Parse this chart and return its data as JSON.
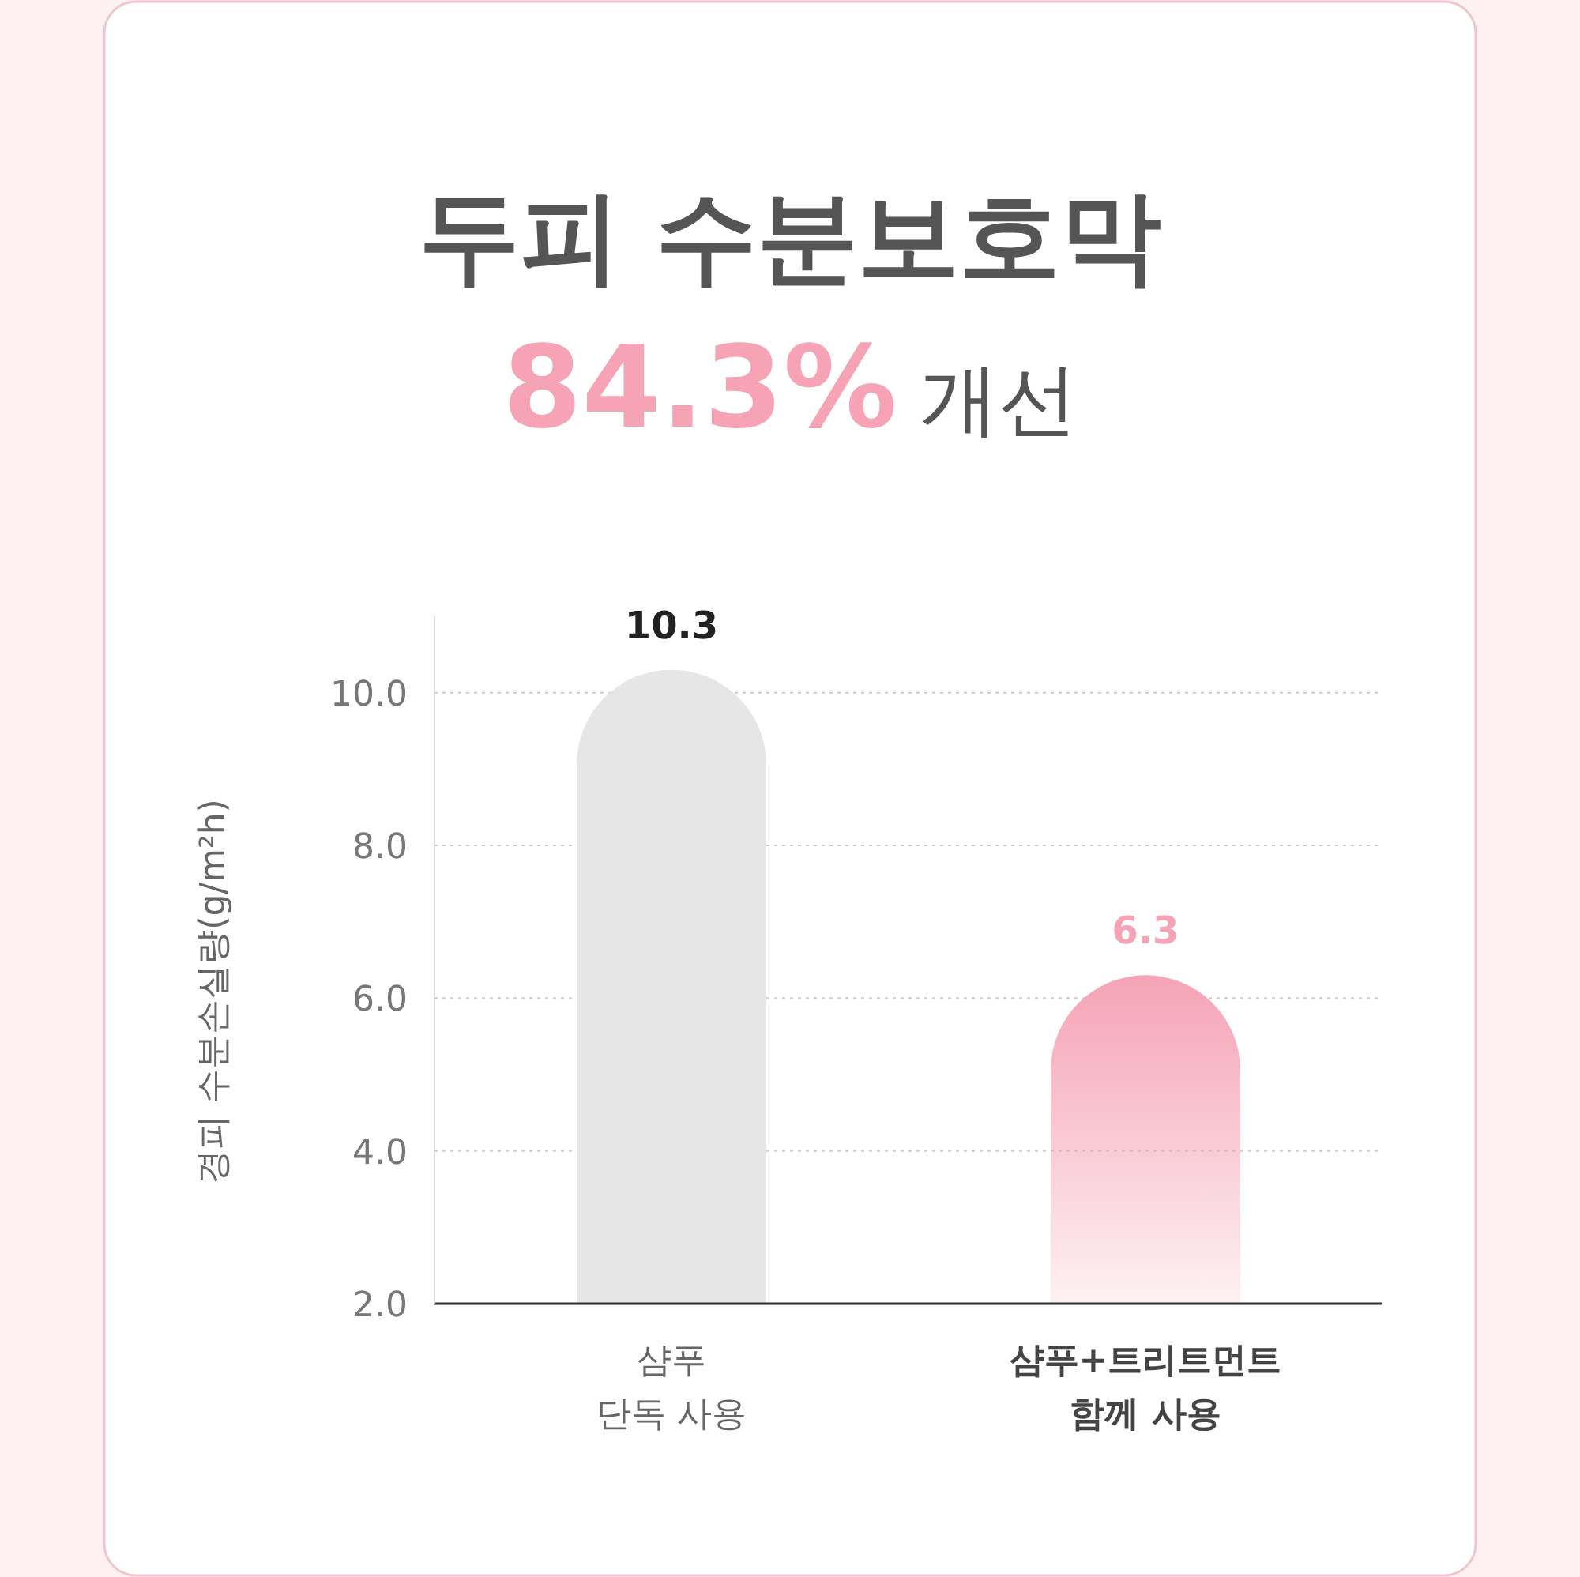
{
  "chart_data": {
    "type": "bar",
    "title": "두피 수분보호막",
    "subtitle": "84.3% 개선",
    "ylabel": "경피 수분손실량(g/m²h)",
    "categories": [
      "샴푸\n단독 사용",
      "샴푸+트리트먼트\n함께 사용"
    ],
    "values": [
      10.3,
      6.3
    ],
    "colors": [
      "#e6e6e6",
      "#f5a3b5"
    ],
    "data_labels": true,
    "ylim": [
      2,
      11
    ],
    "yticks": [
      {
        "value": 2,
        "label": "2.0"
      },
      {
        "value": 4,
        "label": "4.0"
      },
      {
        "value": 6,
        "label": "6.0"
      },
      {
        "value": 8,
        "label": "8.0"
      },
      {
        "value": 10,
        "label": "10.0"
      }
    ],
    "grid": "y"
  }
}
